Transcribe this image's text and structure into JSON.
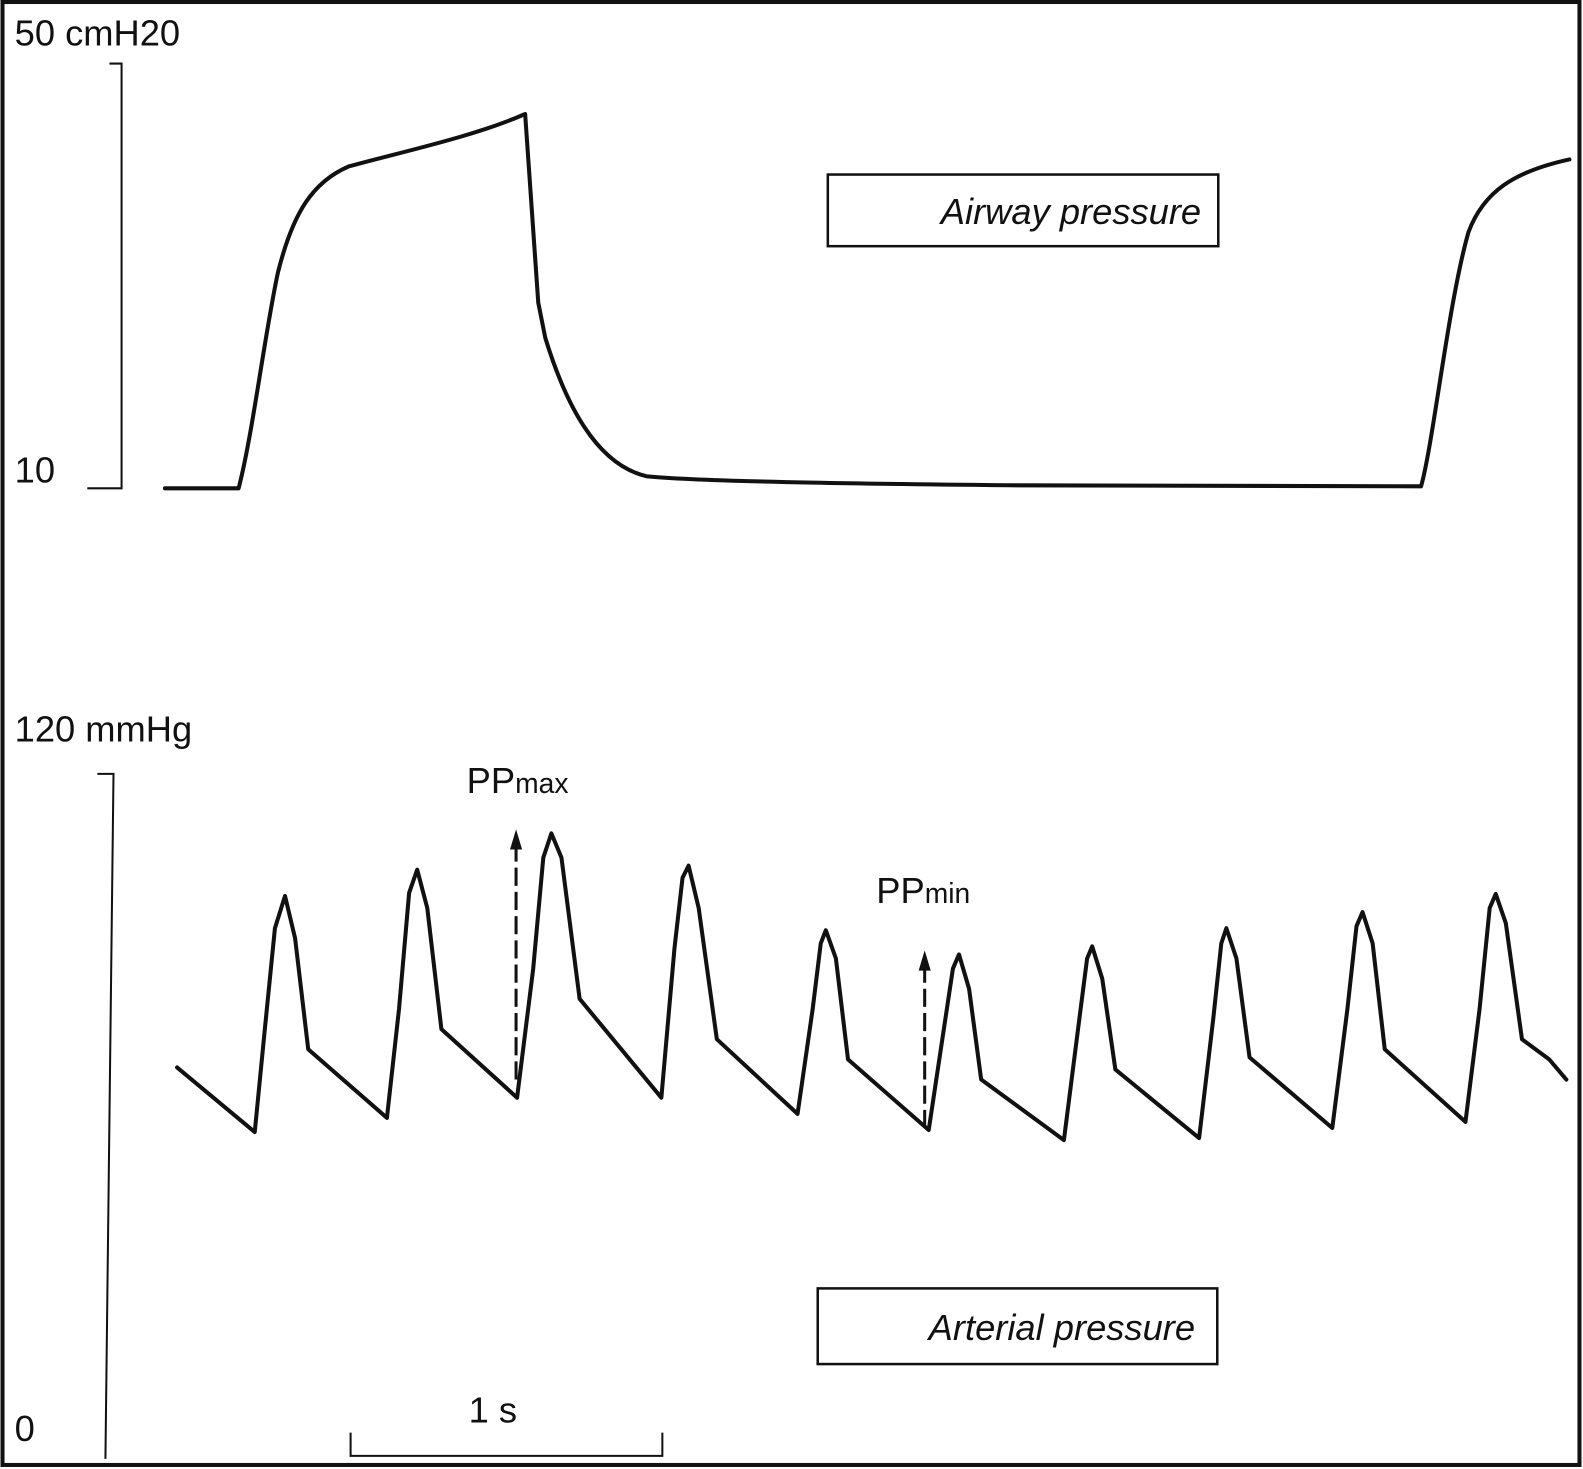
{
  "airway": {
    "scale_top": "50 cmH20",
    "scale_bottom": "10",
    "label": "Airway pressure"
  },
  "arterial": {
    "scale_top": "120 mmHg",
    "scale_bottom": "0",
    "label": "Arterial pressure",
    "pp_max": {
      "base": "PP",
      "sub": "max"
    },
    "pp_min": {
      "base": "PP",
      "sub": "min"
    }
  },
  "time_scale": "1 s"
}
